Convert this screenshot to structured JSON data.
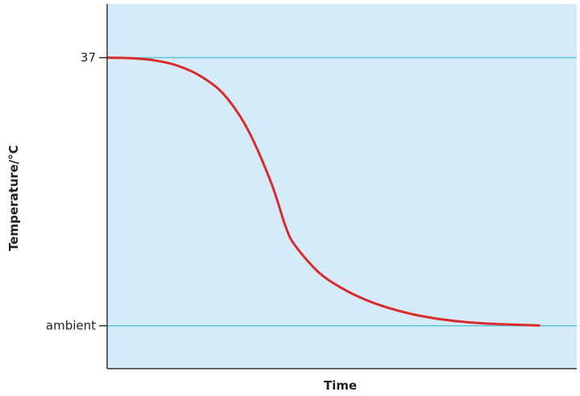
{
  "chart_data": {
    "type": "line",
    "title": "",
    "xlabel": "Time",
    "ylabel": "Temperature/°C",
    "y_ticks": [
      {
        "label": "37",
        "value": 1.0
      },
      {
        "label": "ambient",
        "value": 0.0
      }
    ],
    "reference_lines": [
      {
        "label": "37",
        "value": 1.0
      },
      {
        "label": "ambient",
        "value": 0.0
      }
    ],
    "ylim": [
      -0.16,
      1.2
    ],
    "xlim": [
      0,
      1
    ],
    "grid": false,
    "series": [
      {
        "values": [
          [
            0.0,
            1.0
          ],
          [
            0.05,
            0.998
          ],
          [
            0.1,
            0.99
          ],
          [
            0.15,
            0.97
          ],
          [
            0.2,
            0.93
          ],
          [
            0.25,
            0.86
          ],
          [
            0.3,
            0.73
          ],
          [
            0.35,
            0.53
          ],
          [
            0.38,
            0.37
          ],
          [
            0.4,
            0.3
          ],
          [
            0.45,
            0.2
          ],
          [
            0.5,
            0.14
          ],
          [
            0.55,
            0.097
          ],
          [
            0.6,
            0.066
          ],
          [
            0.65,
            0.043
          ],
          [
            0.7,
            0.027
          ],
          [
            0.75,
            0.016
          ],
          [
            0.8,
            0.009
          ],
          [
            0.85,
            0.005
          ],
          [
            0.9,
            0.002
          ],
          [
            0.92,
            0.001
          ]
        ]
      }
    ],
    "colors": {
      "plot_background": "#d6ebfa",
      "reference_line": "#5bc8dc",
      "curve": "#d92b2b",
      "axis": "#333333"
    }
  }
}
